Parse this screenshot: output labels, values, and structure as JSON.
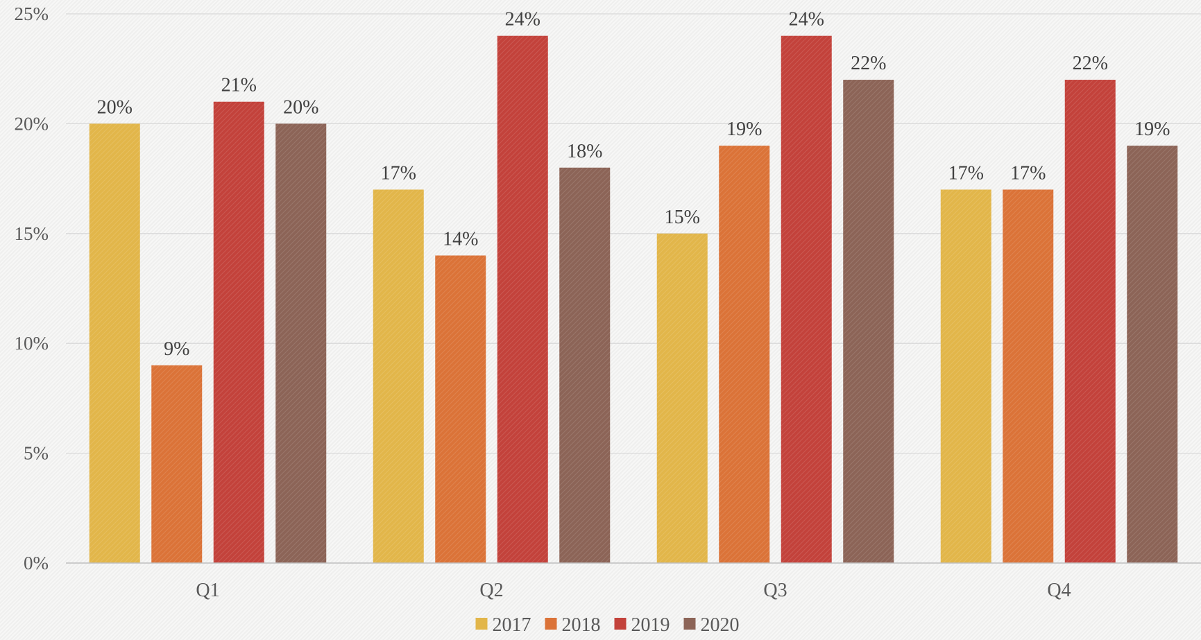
{
  "chart_data": {
    "type": "bar",
    "title": "",
    "xlabel": "",
    "ylabel": "",
    "ylim": [
      0,
      25
    ],
    "yticks": [
      "0%",
      "5%",
      "10%",
      "15%",
      "20%",
      "25%"
    ],
    "ytick_values": [
      0,
      5,
      10,
      15,
      20,
      25
    ],
    "grid": true,
    "legend_position": "bottom",
    "categories": [
      "Q1",
      "Q2",
      "Q3",
      "Q4"
    ],
    "series": [
      {
        "name": "2017",
        "color": "#e2b64a",
        "values": [
          20,
          17,
          15,
          17
        ],
        "labels": [
          "20%",
          "17%",
          "15%",
          "17%"
        ]
      },
      {
        "name": "2018",
        "color": "#db7338",
        "values": [
          9,
          14,
          19,
          17
        ],
        "labels": [
          "9%",
          "14%",
          "19%",
          "17%"
        ]
      },
      {
        "name": "2019",
        "color": "#c3423b",
        "values": [
          21,
          24,
          24,
          22
        ],
        "labels": [
          "21%",
          "24%",
          "24%",
          "22%"
        ]
      },
      {
        "name": "2020",
        "color": "#8c6457",
        "values": [
          20,
          18,
          22,
          19
        ],
        "labels": [
          "20%",
          "18%",
          "22%",
          "19%"
        ]
      }
    ]
  }
}
